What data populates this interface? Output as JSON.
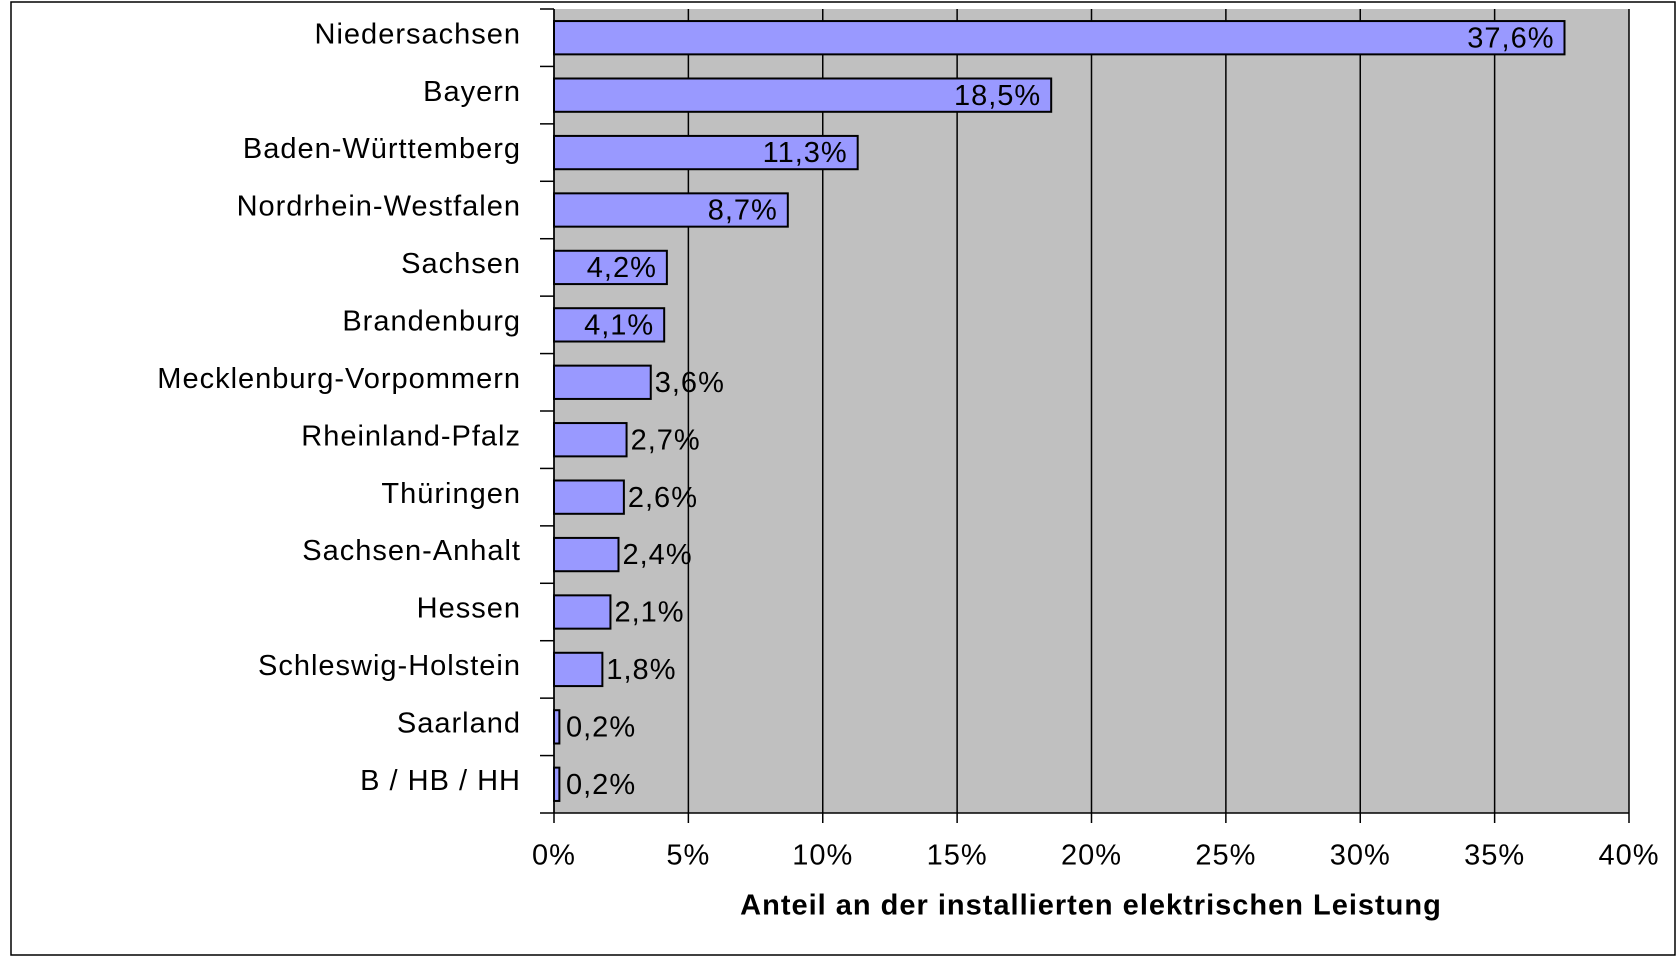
{
  "chart_data": {
    "type": "bar",
    "orientation": "horizontal",
    "xlabel": "Anteil an der installierten elektrischen Leistung",
    "categories": [
      "Niedersachsen",
      "Bayern",
      "Baden-Württemberg",
      "Nordrhein-Westfalen",
      "Sachsen",
      "Brandenburg",
      "Mecklenburg-Vorpommern",
      "Rheinland-Pfalz",
      "Thüringen",
      "Sachsen-Anhalt",
      "Hessen",
      "Schleswig-Holstein",
      "Saarland",
      "B / HB / HH"
    ],
    "values": [
      37.6,
      18.5,
      11.3,
      8.7,
      4.2,
      4.1,
      3.6,
      2.7,
      2.6,
      2.4,
      2.1,
      1.8,
      0.2,
      0.2
    ],
    "value_labels": [
      "37,6%",
      "18,5%",
      "11,3%",
      "8,7%",
      "4,2%",
      "4,1%",
      "3,6%",
      "2,7%",
      "2,6%",
      "2,4%",
      "2,1%",
      "1,8%",
      "0,2%",
      "0,2%"
    ],
    "color": "#9999ff",
    "xlim": [
      0,
      40
    ],
    "xticks": [
      {
        "value": 0,
        "label": "0%"
      },
      {
        "value": 5,
        "label": "5%"
      },
      {
        "value": 10,
        "label": "10%"
      },
      {
        "value": 15,
        "label": "15%"
      },
      {
        "value": 20,
        "label": "20%"
      },
      {
        "value": 25,
        "label": "25%"
      },
      {
        "value": 30,
        "label": "30%"
      },
      {
        "value": 35,
        "label": "35%"
      },
      {
        "value": 40,
        "label": "40%"
      }
    ],
    "grid": true
  }
}
